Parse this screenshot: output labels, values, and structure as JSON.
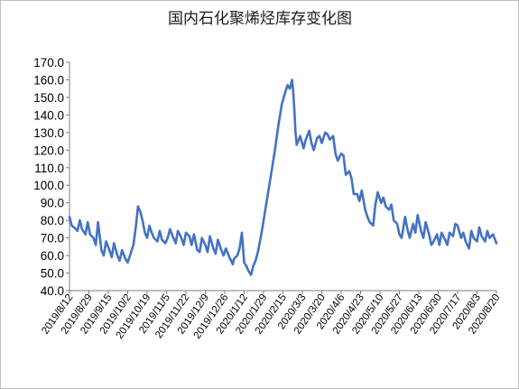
{
  "chart_data": {
    "type": "line",
    "title": "国内石化聚烯烃库存变化图",
    "xlabel": "",
    "ylabel": "",
    "ylim": [
      40,
      170
    ],
    "yticks": [
      "40.0",
      "50.0",
      "60.0",
      "70.0",
      "80.0",
      "90.0",
      "100.0",
      "110.0",
      "120.0",
      "130.0",
      "140.0",
      "150.0",
      "160.0",
      "170.0"
    ],
    "xticks": [
      "2019/8/12",
      "2019/8/29",
      "2019/9/15",
      "2019/10/2",
      "2019/10/19",
      "2019/11/5",
      "2019/11/22",
      "2019/12/9",
      "2019/12/26",
      "2020/1/12",
      "2020/1/29",
      "2020/2/15",
      "2020/3/3",
      "2020/3/20",
      "2020/4/6",
      "2020/4/23",
      "2020/5/10",
      "2020/5/27",
      "2020/6/13",
      "2020/6/30",
      "2020/7/17",
      "2020/8/3",
      "2020/8/20"
    ],
    "x_start": "2019-08-12",
    "x_end": "2020-08-20",
    "grid": false,
    "series": [
      {
        "color": "#4472c4",
        "points": [
          [
            "2019-08-12",
            82
          ],
          [
            "2019-08-14",
            77
          ],
          [
            "2019-08-16",
            76
          ],
          [
            "2019-08-19",
            74
          ],
          [
            "2019-08-21",
            80
          ],
          [
            "2019-08-23",
            75
          ],
          [
            "2019-08-26",
            72
          ],
          [
            "2019-08-28",
            79
          ],
          [
            "2019-08-30",
            72
          ],
          [
            "2019-09-02",
            70
          ],
          [
            "2019-09-04",
            66
          ],
          [
            "2019-09-06",
            79
          ],
          [
            "2019-09-09",
            63
          ],
          [
            "2019-09-11",
            60
          ],
          [
            "2019-09-13",
            68
          ],
          [
            "2019-09-16",
            63
          ],
          [
            "2019-09-18",
            59
          ],
          [
            "2019-09-20",
            67
          ],
          [
            "2019-09-23",
            60
          ],
          [
            "2019-09-25",
            57
          ],
          [
            "2019-09-27",
            63
          ],
          [
            "2019-09-30",
            58
          ],
          [
            "2019-10-02",
            56
          ],
          [
            "2019-10-04",
            60
          ],
          [
            "2019-10-07",
            66
          ],
          [
            "2019-10-09",
            76
          ],
          [
            "2019-10-11",
            88
          ],
          [
            "2019-10-13",
            85
          ],
          [
            "2019-10-15",
            80
          ],
          [
            "2019-10-17",
            73
          ],
          [
            "2019-10-19",
            70
          ],
          [
            "2019-10-21",
            77
          ],
          [
            "2019-10-23",
            73
          ],
          [
            "2019-10-25",
            70
          ],
          [
            "2019-10-28",
            68
          ],
          [
            "2019-10-30",
            74
          ],
          [
            "2019-11-01",
            69
          ],
          [
            "2019-11-04",
            67
          ],
          [
            "2019-11-06",
            70
          ],
          [
            "2019-11-08",
            75
          ],
          [
            "2019-11-11",
            70
          ],
          [
            "2019-11-13",
            67
          ],
          [
            "2019-11-15",
            74
          ],
          [
            "2019-11-18",
            70
          ],
          [
            "2019-11-20",
            66
          ],
          [
            "2019-11-22",
            73
          ],
          [
            "2019-11-25",
            71
          ],
          [
            "2019-11-27",
            66
          ],
          [
            "2019-11-29",
            72
          ],
          [
            "2019-12-02",
            63
          ],
          [
            "2019-12-04",
            62
          ],
          [
            "2019-12-06",
            70
          ],
          [
            "2019-12-09",
            66
          ],
          [
            "2019-12-11",
            62
          ],
          [
            "2019-12-13",
            71
          ],
          [
            "2019-12-16",
            64
          ],
          [
            "2019-12-18",
            61
          ],
          [
            "2019-12-20",
            69
          ],
          [
            "2019-12-23",
            63
          ],
          [
            "2019-12-25",
            60
          ],
          [
            "2019-12-27",
            64
          ],
          [
            "2019-12-30",
            59
          ],
          [
            "2020-01-02",
            55
          ],
          [
            "2020-01-03",
            58
          ],
          [
            "2020-01-06",
            60
          ],
          [
            "2020-01-08",
            64
          ],
          [
            "2020-01-10",
            73
          ],
          [
            "2020-01-12",
            56
          ],
          [
            "2020-01-14",
            54
          ],
          [
            "2020-01-16",
            51
          ],
          [
            "2020-01-18",
            49
          ],
          [
            "2020-01-20",
            54
          ],
          [
            "2020-01-22",
            57
          ],
          [
            "2020-01-24",
            62
          ],
          [
            "2020-01-27",
            72
          ],
          [
            "2020-01-30",
            84
          ],
          [
            "2020-02-02",
            96
          ],
          [
            "2020-02-05",
            108
          ],
          [
            "2020-02-08",
            120
          ],
          [
            "2020-02-11",
            134
          ],
          [
            "2020-02-14",
            146
          ],
          [
            "2020-02-17",
            153
          ],
          [
            "2020-02-19",
            157
          ],
          [
            "2020-02-21",
            155
          ],
          [
            "2020-02-23",
            160
          ],
          [
            "2020-02-24",
            153
          ],
          [
            "2020-02-25",
            143
          ],
          [
            "2020-02-26",
            130
          ],
          [
            "2020-02-27",
            123
          ],
          [
            "2020-03-01",
            128
          ],
          [
            "2020-03-04",
            121
          ],
          [
            "2020-03-06",
            126
          ],
          [
            "2020-03-09",
            131
          ],
          [
            "2020-03-11",
            124
          ],
          [
            "2020-03-13",
            120
          ],
          [
            "2020-03-16",
            127
          ],
          [
            "2020-03-18",
            128
          ],
          [
            "2020-03-20",
            124
          ],
          [
            "2020-03-23",
            130
          ],
          [
            "2020-03-25",
            129
          ],
          [
            "2020-03-27",
            126
          ],
          [
            "2020-03-30",
            128
          ],
          [
            "2020-04-01",
            118
          ],
          [
            "2020-04-03",
            114
          ],
          [
            "2020-04-06",
            118
          ],
          [
            "2020-04-08",
            117
          ],
          [
            "2020-04-10",
            106
          ],
          [
            "2020-04-13",
            108
          ],
          [
            "2020-04-15",
            104
          ],
          [
            "2020-04-17",
            95
          ],
          [
            "2020-04-20",
            95
          ],
          [
            "2020-04-22",
            91
          ],
          [
            "2020-04-24",
            97
          ],
          [
            "2020-04-27",
            86
          ],
          [
            "2020-04-29",
            82
          ],
          [
            "2020-05-01",
            79
          ],
          [
            "2020-05-04",
            77
          ],
          [
            "2020-05-06",
            89
          ],
          [
            "2020-05-08",
            96
          ],
          [
            "2020-05-11",
            90
          ],
          [
            "2020-05-13",
            93
          ],
          [
            "2020-05-15",
            88
          ],
          [
            "2020-05-18",
            86
          ],
          [
            "2020-05-20",
            89
          ],
          [
            "2020-05-22",
            80
          ],
          [
            "2020-05-25",
            78
          ],
          [
            "2020-05-27",
            72
          ],
          [
            "2020-05-29",
            70
          ],
          [
            "2020-06-01",
            82
          ],
          [
            "2020-06-03",
            75
          ],
          [
            "2020-06-05",
            70
          ],
          [
            "2020-06-08",
            78
          ],
          [
            "2020-06-10",
            73
          ],
          [
            "2020-06-12",
            83
          ],
          [
            "2020-06-15",
            74
          ],
          [
            "2020-06-17",
            70
          ],
          [
            "2020-06-19",
            79
          ],
          [
            "2020-06-22",
            72
          ],
          [
            "2020-06-24",
            66
          ],
          [
            "2020-06-26",
            68
          ],
          [
            "2020-06-29",
            72
          ],
          [
            "2020-07-01",
            66
          ],
          [
            "2020-07-03",
            73
          ],
          [
            "2020-07-06",
            69
          ],
          [
            "2020-07-08",
            66
          ],
          [
            "2020-07-10",
            73
          ],
          [
            "2020-07-13",
            71
          ],
          [
            "2020-07-15",
            78
          ],
          [
            "2020-07-17",
            77
          ],
          [
            "2020-07-20",
            70
          ],
          [
            "2020-07-22",
            73
          ],
          [
            "2020-07-24",
            68
          ],
          [
            "2020-07-27",
            64
          ],
          [
            "2020-07-29",
            74
          ],
          [
            "2020-07-31",
            70
          ],
          [
            "2020-08-03",
            68
          ],
          [
            "2020-08-05",
            76
          ],
          [
            "2020-08-07",
            71
          ],
          [
            "2020-08-10",
            68
          ],
          [
            "2020-08-12",
            74
          ],
          [
            "2020-08-14",
            70
          ],
          [
            "2020-08-17",
            72
          ],
          [
            "2020-08-20",
            67
          ]
        ]
      }
    ]
  }
}
